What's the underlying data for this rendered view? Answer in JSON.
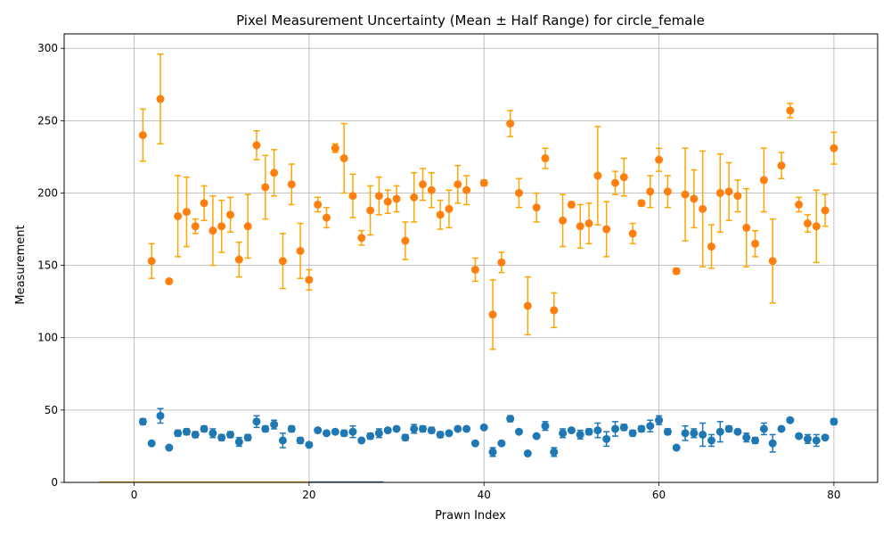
{
  "chart_data": {
    "type": "scatter",
    "title": "Pixel Measurement Uncertainty (Mean ± Half Range) for circle_female",
    "xlabel": "Prawn Index",
    "ylabel": "Measurement",
    "xlim": [
      -8,
      85
    ],
    "ylim": [
      0,
      310
    ],
    "xticks": [
      0,
      20,
      40,
      60,
      80
    ],
    "yticks": [
      0,
      50,
      100,
      150,
      200,
      250,
      300
    ],
    "grid": true,
    "colors": {
      "orange": "#ff7f0e",
      "orange_err": "#ffa500",
      "blue": "#1f77b4"
    },
    "series": [
      {
        "color": "orange",
        "x": [
          1,
          2,
          3,
          4,
          5,
          6,
          7,
          8,
          9,
          10,
          11,
          12,
          13,
          14,
          15,
          16,
          17,
          18,
          19,
          20,
          21,
          22,
          23,
          24,
          25,
          26,
          27,
          28,
          29,
          30,
          31,
          32,
          33,
          34,
          35,
          36,
          37,
          38,
          39,
          40,
          41,
          42,
          43,
          44,
          45,
          46,
          47,
          48,
          49,
          50,
          51,
          52,
          53,
          54,
          55,
          56,
          57,
          58,
          59,
          60,
          61,
          62,
          63,
          64,
          65,
          66,
          67,
          68,
          69,
          70,
          71,
          72,
          73,
          74,
          75,
          76,
          77,
          78,
          79,
          80
        ],
        "y": [
          240,
          153,
          265,
          139,
          184,
          187,
          177,
          193,
          174,
          177,
          185,
          154,
          177,
          233,
          204,
          214,
          153,
          206,
          160,
          140,
          192,
          183,
          231,
          224,
          198,
          169,
          188,
          198,
          194,
          196,
          167,
          197,
          206,
          202,
          185,
          189,
          206,
          202,
          147,
          207,
          116,
          152,
          248,
          200,
          122,
          190,
          224,
          119,
          181,
          192,
          177,
          179,
          212,
          175,
          207,
          211,
          172,
          193,
          201,
          223,
          201,
          146,
          199,
          196,
          189,
          163,
          200,
          201,
          198,
          176,
          165,
          209,
          153,
          219,
          257,
          192,
          179,
          177,
          188,
          231
        ],
        "err": [
          18,
          12,
          31,
          1,
          28,
          24,
          5,
          12,
          24,
          18,
          12,
          12,
          22,
          10,
          22,
          16,
          19,
          14,
          19,
          7,
          5,
          7,
          3,
          24,
          15,
          5,
          17,
          13,
          8,
          9,
          13,
          17,
          11,
          12,
          10,
          13,
          13,
          10,
          8,
          2,
          24,
          7,
          9,
          10,
          20,
          10,
          7,
          12,
          18,
          2,
          15,
          14,
          34,
          19,
          8,
          13,
          7,
          2,
          11,
          8,
          11,
          2,
          32,
          20,
          40,
          15,
          27,
          20,
          11,
          27,
          9,
          22,
          29,
          9,
          5,
          5,
          6,
          25,
          11,
          11
        ]
      },
      {
        "color": "blue",
        "x": [
          1,
          2,
          3,
          4,
          5,
          6,
          7,
          8,
          9,
          10,
          11,
          12,
          13,
          14,
          15,
          16,
          17,
          18,
          19,
          20,
          21,
          22,
          23,
          24,
          25,
          26,
          27,
          28,
          29,
          30,
          31,
          32,
          33,
          34,
          35,
          36,
          37,
          38,
          39,
          40,
          41,
          42,
          43,
          44,
          45,
          46,
          47,
          48,
          49,
          50,
          51,
          52,
          53,
          54,
          55,
          56,
          57,
          58,
          59,
          60,
          61,
          62,
          63,
          64,
          65,
          66,
          67,
          68,
          69,
          70,
          71,
          72,
          73,
          74,
          75,
          76,
          77,
          78,
          79,
          80
        ],
        "y": [
          42,
          27,
          46,
          24,
          34,
          35,
          33,
          37,
          34,
          31,
          33,
          28,
          31,
          42,
          37,
          40,
          29,
          37,
          29,
          26,
          36,
          34,
          35,
          34,
          35,
          29,
          32,
          34,
          36,
          37,
          31,
          37,
          37,
          36,
          33,
          34,
          37,
          37,
          27,
          38,
          21,
          27,
          44,
          35,
          20,
          32,
          39,
          21,
          34,
          36,
          33,
          35,
          36,
          30,
          37,
          38,
          34,
          37,
          39,
          43,
          35,
          24,
          34,
          34,
          33,
          29,
          35,
          37,
          35,
          31,
          29,
          37,
          27,
          37,
          43,
          32,
          30,
          29,
          31,
          42
        ],
        "err": [
          2,
          0,
          5,
          0,
          2,
          2,
          2,
          2,
          3,
          2,
          2,
          3,
          2,
          4,
          2,
          3,
          5,
          2,
          2,
          1,
          1,
          0,
          1,
          2,
          4,
          1,
          2,
          3,
          1,
          1,
          2,
          3,
          2,
          2,
          2,
          1,
          1,
          1,
          0,
          1,
          3,
          1,
          2,
          0,
          0,
          1,
          3,
          3,
          3,
          1,
          3,
          2,
          5,
          5,
          5,
          2,
          2,
          2,
          4,
          3,
          2,
          0,
          5,
          3,
          8,
          4,
          7,
          2,
          1,
          3,
          2,
          4,
          6,
          1,
          1,
          1,
          3,
          4,
          1,
          2
        ]
      }
    ]
  }
}
